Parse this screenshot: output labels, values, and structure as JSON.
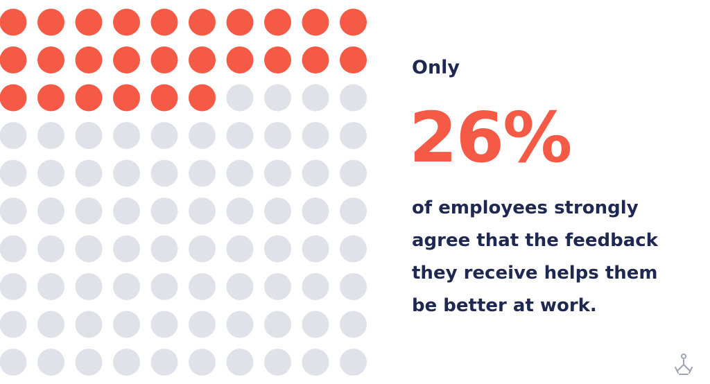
{
  "chart_data": {
    "type": "waffle",
    "value": 26,
    "value_label": "26%",
    "color": "#f45a45",
    "empty_color": "#e0e2e9",
    "lead": "Only",
    "description": "of employees strongly agree that the feedback they receive helps them be better at work."
  }
}
